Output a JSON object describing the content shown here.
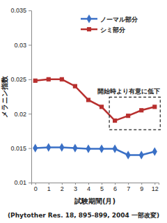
{
  "chart_data": {
    "type": "line",
    "y_label": "メラニン指数",
    "x_label": "試験期間(月)",
    "categories": [
      "0",
      "1",
      "2",
      "3",
      "4",
      "5",
      "6",
      "7",
      "9",
      "12"
    ],
    "series": [
      {
        "name": "ノーマル部分",
        "color": "#3a70c6",
        "marker": "diamond",
        "values": [
          0.015,
          0.0151,
          0.0151,
          0.015,
          0.0149,
          0.0149,
          0.0149,
          0.014,
          0.014,
          0.0145
        ]
      },
      {
        "name": "シミ部分",
        "color": "#b8302f",
        "marker": "square",
        "values": [
          0.0248,
          0.025,
          0.025,
          0.024,
          0.022,
          0.021,
          0.019,
          0.0197,
          0.0205,
          0.021
        ]
      }
    ],
    "ylim": [
      0.01,
      0.035
    ],
    "yticks": [
      0.01,
      0.015,
      0.02,
      0.025,
      0.03,
      0.035
    ],
    "grid": false,
    "legend": "upper right",
    "annotation": {
      "text": "開始時より有意に低下",
      "x": [
        "6",
        "12"
      ]
    },
    "source": "(Phytother Res. 18, 895-899, 2004 一部改変)"
  }
}
